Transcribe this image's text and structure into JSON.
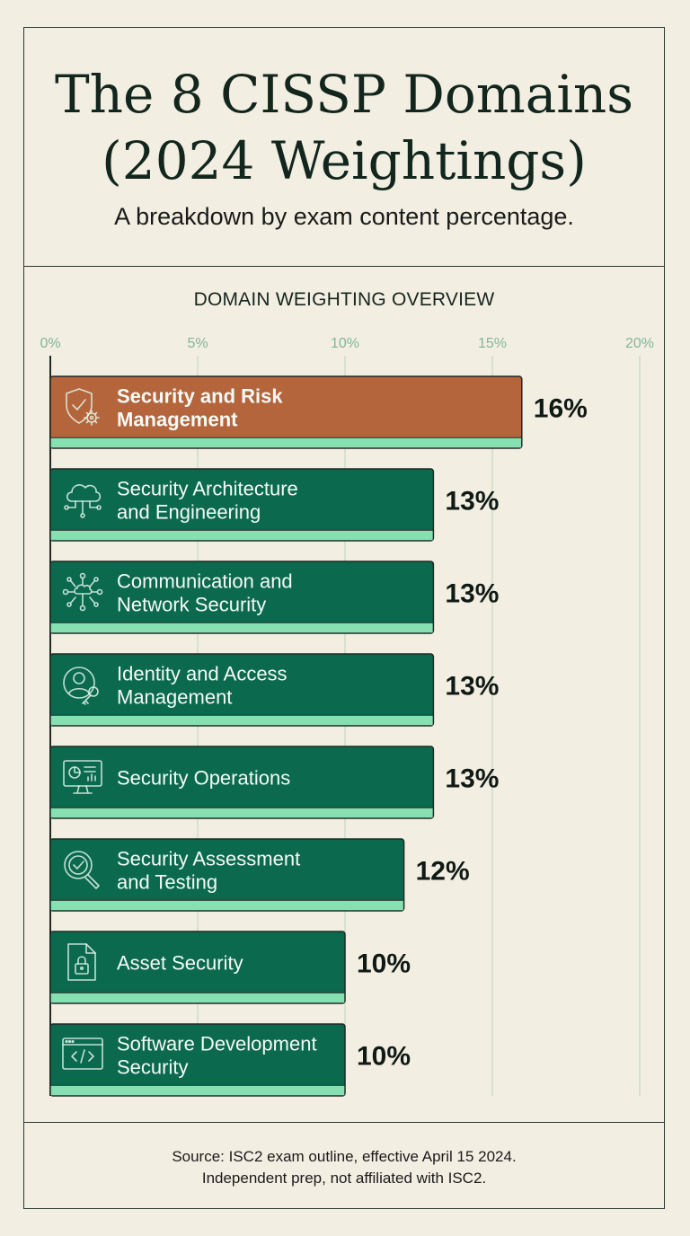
{
  "title_lines": [
    "The 8 CISSP Domains",
    "(2024 Weightings)"
  ],
  "subtitle": "A breakdown by exam content percentage.",
  "footer_lines": [
    "Source: ISC2 exam outline, effective April 15 2024.",
    "Independent prep, not affiliated with ISC2."
  ],
  "colors": {
    "background": "#f3eee2",
    "bar_green": "#0b6a4e",
    "bar_highlight": "#b5653b",
    "bar_accent": "#86e0b2",
    "tick_text": "#7fb79a",
    "grid": "#cfdcc9"
  },
  "chart_data": {
    "type": "bar",
    "orientation": "horizontal",
    "title": "DOMAIN WEIGHTING OVERVIEW",
    "xlim": [
      0,
      20
    ],
    "ticks": [
      "0%",
      "5%",
      "10%",
      "15%",
      "20%"
    ],
    "tick_values": [
      0,
      5,
      10,
      15,
      20
    ],
    "grid": true,
    "bars": [
      {
        "lines": [
          "Security and Risk",
          "Management"
        ],
        "value": 16,
        "label": "16%",
        "icon": "shield-gear-icon",
        "highlight": true
      },
      {
        "lines": [
          "Security Architecture",
          "and Engineering"
        ],
        "value": 13,
        "label": "13%",
        "icon": "cloud-network-icon",
        "highlight": false
      },
      {
        "lines": [
          "Communication and",
          "Network Security"
        ],
        "value": 13,
        "label": "13%",
        "icon": "network-hub-icon",
        "highlight": false
      },
      {
        "lines": [
          "Identity and Access",
          "Management"
        ],
        "value": 13,
        "label": "13%",
        "icon": "user-key-icon",
        "highlight": false
      },
      {
        "lines": [
          "Security Operations"
        ],
        "value": 13,
        "label": "13%",
        "icon": "monitor-dashboard-icon",
        "highlight": false
      },
      {
        "lines": [
          "Security Assessment",
          "and Testing"
        ],
        "value": 12,
        "label": "12%",
        "icon": "magnifier-check-icon",
        "highlight": false
      },
      {
        "lines": [
          "Asset Security"
        ],
        "value": 10,
        "label": "10%",
        "icon": "document-lock-icon",
        "highlight": false
      },
      {
        "lines": [
          "Software Development",
          "Security"
        ],
        "value": 10,
        "label": "10%",
        "icon": "code-window-icon",
        "highlight": false
      }
    ]
  }
}
